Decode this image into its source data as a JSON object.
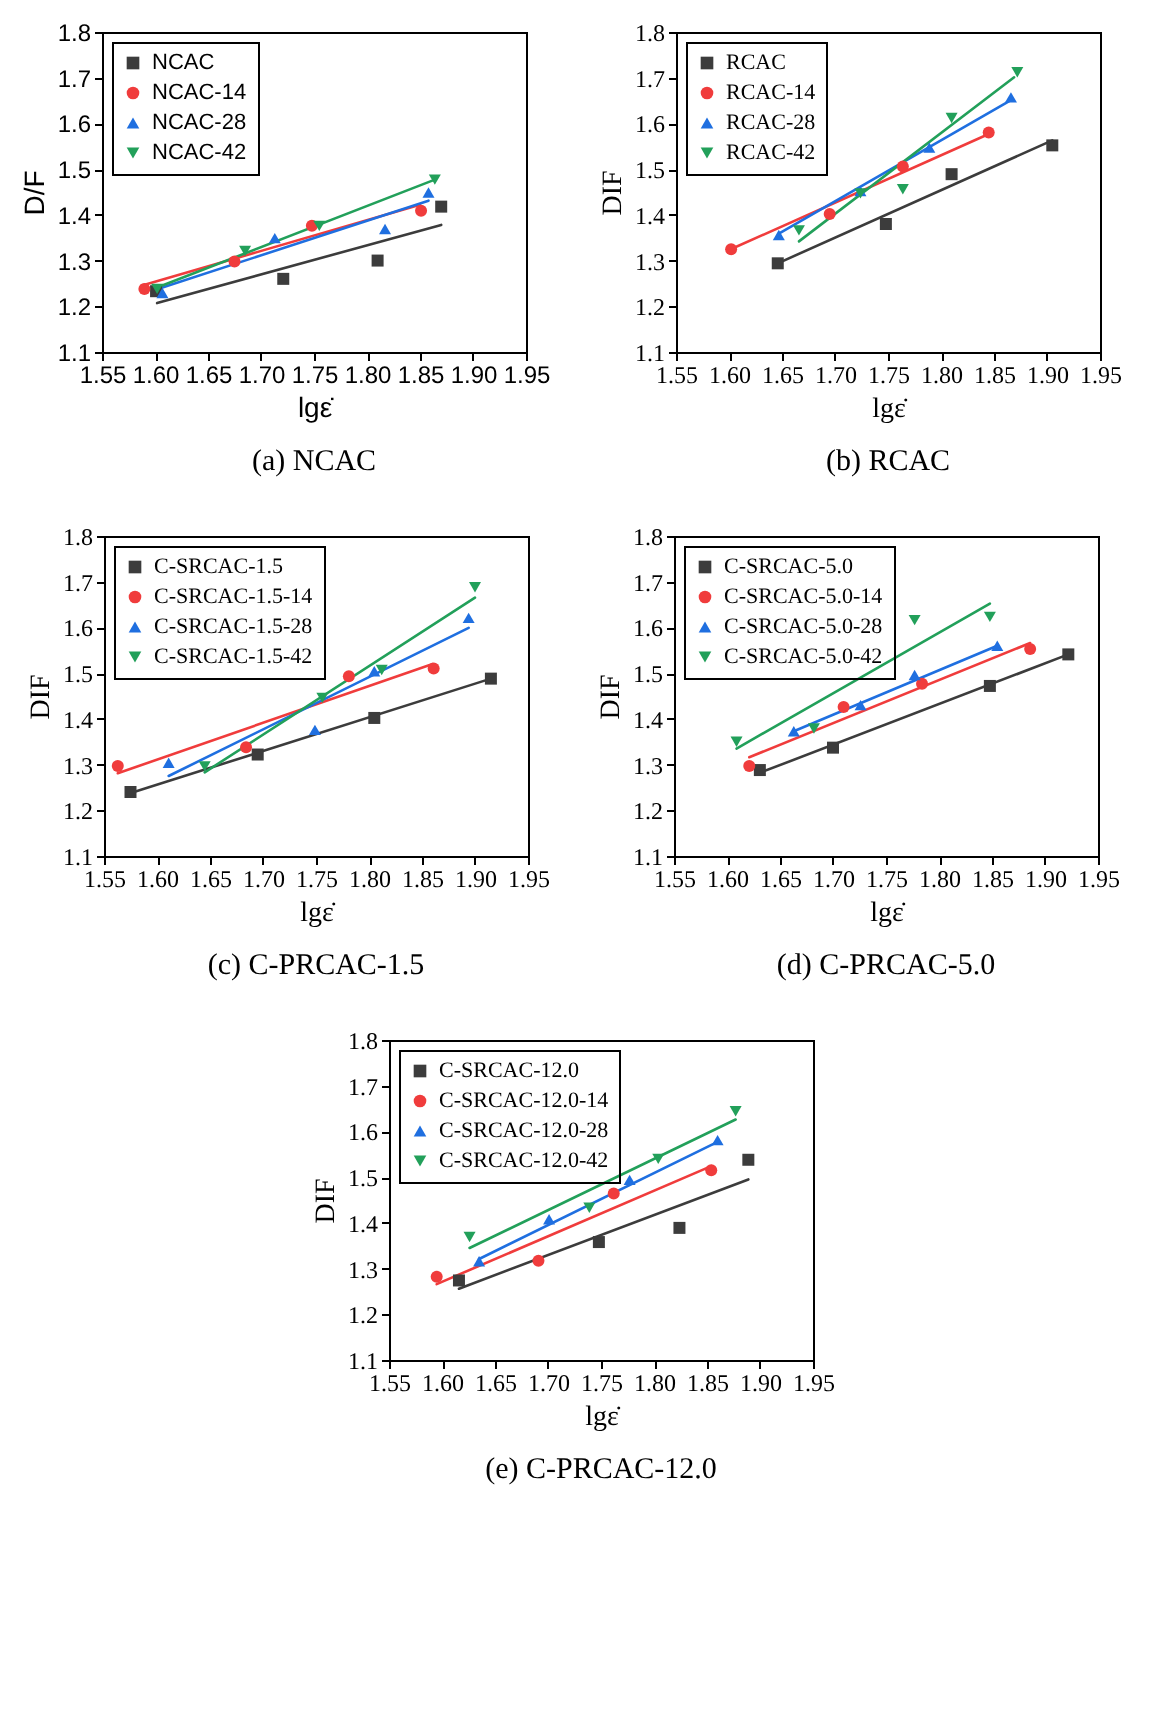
{
  "chart_data": [
    {
      "type": "scatter",
      "title": "(a) NCAC",
      "xlabel": "lgε̇",
      "ylabel": "D/F",
      "xlim": [
        1.55,
        1.95
      ],
      "ylim": [
        1.1,
        1.8
      ],
      "xticks": [
        {
          "value": 1.55,
          "label": "1.55"
        },
        {
          "value": 1.6,
          "label": "1.60"
        },
        {
          "value": 1.65,
          "label": "1.65"
        },
        {
          "value": 1.7,
          "label": "1.70"
        },
        {
          "value": 1.75,
          "label": "1.75"
        },
        {
          "value": 1.8,
          "label": "1.80"
        },
        {
          "value": 1.85,
          "label": "1.85"
        },
        {
          "value": 1.9,
          "label": "1.90"
        },
        {
          "value": 1.95,
          "label": "1.95"
        }
      ],
      "yticks": [
        1.1,
        1.2,
        1.3,
        1.4,
        1.5,
        1.6,
        1.7,
        1.8
      ],
      "legend": "top left",
      "grid": false,
      "series": [
        {
          "name": "NCAC",
          "color": "#3c3c3c",
          "marker": "square",
          "x": [
            1.601,
            1.721,
            1.81,
            1.87
          ],
          "values": [
            1.233,
            1.26,
            1.3,
            1.418
          ]
        },
        {
          "name": "NCAC-14",
          "color": "#f03c3c",
          "marker": "circle",
          "x": [
            1.59,
            1.675,
            1.748,
            1.851
          ],
          "values": [
            1.238,
            1.298,
            1.376,
            1.409
          ]
        },
        {
          "name": "NCAC-28",
          "color": "#1f6fe0",
          "marker": "triangle",
          "x": [
            1.607,
            1.713,
            1.817,
            1.858
          ],
          "values": [
            1.229,
            1.349,
            1.369,
            1.449
          ]
        },
        {
          "name": "NCAC-42",
          "color": "#22a05a",
          "marker": "triangle-down",
          "x": [
            1.602,
            1.685,
            1.755,
            1.864
          ],
          "values": [
            1.238,
            1.321,
            1.376,
            1.477
          ]
        },
        {
          "type": "line",
          "color": "#3c3c3c",
          "marker": "none",
          "x": [
            1.602,
            1.87
          ],
          "values": [
            1.207,
            1.378
          ]
        },
        {
          "type": "line",
          "color": "#f03c3c",
          "marker": "none",
          "x": [
            1.587,
            1.85
          ],
          "values": [
            1.245,
            1.422
          ]
        },
        {
          "type": "line",
          "color": "#1f6fe0",
          "marker": "none",
          "x": [
            1.607,
            1.858
          ],
          "values": [
            1.241,
            1.431
          ]
        },
        {
          "type": "line",
          "color": "#22a05a",
          "marker": "none",
          "x": [
            1.602,
            1.864
          ],
          "values": [
            1.241,
            1.477
          ]
        }
      ]
    },
    {
      "type": "scatter",
      "title": "(b) RCAC",
      "xlabel": "lgε̇",
      "ylabel": "DIF",
      "xlim": [
        1.55,
        1.95
      ],
      "ylim": [
        1.1,
        1.8
      ],
      "xticks": [
        {
          "value": 1.55,
          "label": "1.55"
        },
        {
          "value": 1.6,
          "label": "1.60"
        },
        {
          "value": 1.65,
          "label": "1.65"
        },
        {
          "value": 1.7,
          "label": "1.70"
        },
        {
          "value": 1.75,
          "label": "1.75"
        },
        {
          "value": 1.8,
          "label": "1.80"
        },
        {
          "value": 1.85,
          "label": "1.85"
        },
        {
          "value": 1.9,
          "label": "1.90"
        },
        {
          "value": 1.95,
          "label": "1.95"
        }
      ],
      "yticks": [
        1.1,
        1.2,
        1.3,
        1.4,
        1.5,
        1.6,
        1.7,
        1.8
      ],
      "legend": "top left",
      "grid": false,
      "series": [
        {
          "name": "RCAC",
          "color": "#3c3c3c",
          "marker": "square",
          "x": [
            1.646,
            1.748,
            1.81,
            1.905
          ],
          "values": [
            1.294,
            1.38,
            1.489,
            1.552
          ]
        },
        {
          "name": "RCAC-14",
          "color": "#f03c3c",
          "marker": "circle",
          "x": [
            1.602,
            1.695,
            1.764,
            1.845
          ],
          "values": [
            1.325,
            1.402,
            1.506,
            1.58
          ]
        },
        {
          "name": "RCAC-28",
          "color": "#1f6fe0",
          "marker": "triangle",
          "x": [
            1.647,
            1.724,
            1.789,
            1.866
          ],
          "values": [
            1.356,
            1.452,
            1.547,
            1.657
          ]
        },
        {
          "name": "RCAC-42",
          "color": "#22a05a",
          "marker": "triangle-down",
          "x": [
            1.666,
            1.724,
            1.764,
            1.81,
            1.872
          ],
          "values": [
            1.366,
            1.447,
            1.456,
            1.612,
            1.712
          ]
        },
        {
          "type": "line",
          "color": "#3c3c3c",
          "marker": "none",
          "x": [
            1.646,
            1.905
          ],
          "values": [
            1.294,
            1.563
          ]
        },
        {
          "type": "line",
          "color": "#f03c3c",
          "marker": "none",
          "x": [
            1.6,
            1.845
          ],
          "values": [
            1.323,
            1.577
          ]
        },
        {
          "type": "line",
          "color": "#1f6fe0",
          "marker": "none",
          "x": [
            1.647,
            1.866
          ],
          "values": [
            1.359,
            1.651
          ]
        },
        {
          "type": "line",
          "color": "#22a05a",
          "marker": "none",
          "x": [
            1.666,
            1.869
          ],
          "values": [
            1.342,
            1.701
          ]
        }
      ]
    },
    {
      "type": "scatter",
      "title": "(c) C-PRCAC-1.5",
      "xlabel": "lgε̇",
      "ylabel": "DIF",
      "xlim": [
        1.55,
        1.95
      ],
      "ylim": [
        1.1,
        1.8
      ],
      "xticks": [
        {
          "value": 1.55,
          "label": "1.55"
        },
        {
          "value": 1.6,
          "label": "1.60"
        },
        {
          "value": 1.65,
          "label": "1.65"
        },
        {
          "value": 1.7,
          "label": "1.70"
        },
        {
          "value": 1.75,
          "label": "1.75"
        },
        {
          "value": 1.8,
          "label": "1.80"
        },
        {
          "value": 1.85,
          "label": "1.85"
        },
        {
          "value": 1.9,
          "label": "1.90"
        },
        {
          "value": 1.95,
          "label": "1.95"
        }
      ],
      "yticks": [
        1.1,
        1.2,
        1.3,
        1.4,
        1.5,
        1.6,
        1.7,
        1.8
      ],
      "legend": "top left",
      "grid": false,
      "series": [
        {
          "name": "C-SRCAC-1.5",
          "color": "#3c3c3c",
          "marker": "square",
          "x": [
            1.575,
            1.695,
            1.805,
            1.915
          ],
          "values": [
            1.24,
            1.322,
            1.402,
            1.488
          ]
        },
        {
          "name": "C-SRCAC-1.5-14",
          "color": "#f03c3c",
          "marker": "circle",
          "x": [
            1.563,
            1.684,
            1.781,
            1.861
          ],
          "values": [
            1.297,
            1.338,
            1.493,
            1.51
          ]
        },
        {
          "name": "C-SRCAC-1.5-28",
          "color": "#1f6fe0",
          "marker": "triangle",
          "x": [
            1.611,
            1.749,
            1.805,
            1.894
          ],
          "values": [
            1.304,
            1.376,
            1.504,
            1.621
          ]
        },
        {
          "name": "C-SRCAC-1.5-42",
          "color": "#22a05a",
          "marker": "triangle-down",
          "x": [
            1.645,
            1.756,
            1.812,
            1.9
          ],
          "values": [
            1.296,
            1.446,
            1.507,
            1.688
          ]
        },
        {
          "type": "line",
          "color": "#3c3c3c",
          "marker": "none",
          "x": [
            1.573,
            1.915
          ],
          "values": [
            1.236,
            1.488
          ]
        },
        {
          "type": "line",
          "color": "#f03c3c",
          "marker": "none",
          "x": [
            1.563,
            1.86
          ],
          "values": [
            1.281,
            1.52
          ]
        },
        {
          "type": "line",
          "color": "#1f6fe0",
          "marker": "none",
          "x": [
            1.611,
            1.894
          ],
          "values": [
            1.275,
            1.599
          ]
        },
        {
          "type": "line",
          "color": "#22a05a",
          "marker": "none",
          "x": [
            1.645,
            1.9
          ],
          "values": [
            1.283,
            1.665
          ]
        }
      ]
    },
    {
      "type": "scatter",
      "title": "(d) C-PRCAC-5.0",
      "xlabel": "lgε̇",
      "ylabel": "DIF",
      "xlim": [
        1.55,
        1.95
      ],
      "ylim": [
        1.1,
        1.8
      ],
      "xticks": [
        {
          "value": 1.55,
          "label": "1.55"
        },
        {
          "value": 1.6,
          "label": "1.60"
        },
        {
          "value": 1.65,
          "label": "1.65"
        },
        {
          "value": 1.7,
          "label": "1.70"
        },
        {
          "value": 1.75,
          "label": "1.75"
        },
        {
          "value": 1.8,
          "label": "1.80"
        },
        {
          "value": 1.85,
          "label": "1.85"
        },
        {
          "value": 1.9,
          "label": "1.90"
        },
        {
          "value": 1.95,
          "label": "1.95"
        }
      ],
      "yticks": [
        1.1,
        1.2,
        1.3,
        1.4,
        1.5,
        1.6,
        1.7,
        1.8
      ],
      "legend": "top left",
      "grid": false,
      "series": [
        {
          "name": "C-SRCAC-5.0",
          "color": "#3c3c3c",
          "marker": "square",
          "x": [
            1.631,
            1.7,
            1.848,
            1.922
          ],
          "values": [
            1.288,
            1.337,
            1.472,
            1.541
          ]
        },
        {
          "name": "C-SRCAC-5.0-14",
          "color": "#f03c3c",
          "marker": "circle",
          "x": [
            1.621,
            1.71,
            1.784,
            1.886
          ],
          "values": [
            1.297,
            1.426,
            1.477,
            1.553
          ]
        },
        {
          "name": "C-SRCAC-5.0-28",
          "color": "#1f6fe0",
          "marker": "triangle",
          "x": [
            1.663,
            1.726,
            1.777,
            1.855
          ],
          "values": [
            1.373,
            1.43,
            1.496,
            1.56
          ]
        },
        {
          "name": "C-SRCAC-5.0-42",
          "color": "#22a05a",
          "marker": "triangle-down",
          "x": [
            1.609,
            1.682,
            1.777,
            1.848
          ],
          "values": [
            1.35,
            1.379,
            1.616,
            1.623
          ]
        },
        {
          "type": "line",
          "color": "#3c3c3c",
          "marker": "none",
          "x": [
            1.631,
            1.922
          ],
          "values": [
            1.282,
            1.541
          ]
        },
        {
          "type": "line",
          "color": "#f03c3c",
          "marker": "none",
          "x": [
            1.621,
            1.886
          ],
          "values": [
            1.316,
            1.566
          ]
        },
        {
          "type": "line",
          "color": "#1f6fe0",
          "marker": "none",
          "x": [
            1.663,
            1.855
          ],
          "values": [
            1.373,
            1.56
          ]
        },
        {
          "type": "line",
          "color": "#22a05a",
          "marker": "none",
          "x": [
            1.609,
            1.848
          ],
          "values": [
            1.335,
            1.652
          ]
        }
      ]
    },
    {
      "type": "scatter",
      "title": "(e) C-PRCAC-12.0",
      "xlabel": "lgε̇",
      "ylabel": "DIF",
      "xlim": [
        1.55,
        1.95
      ],
      "ylim": [
        1.1,
        1.8
      ],
      "xticks": [
        {
          "value": 1.55,
          "label": "1.55"
        },
        {
          "value": 1.6,
          "label": "1.60"
        },
        {
          "value": 1.65,
          "label": "1.65"
        },
        {
          "value": 1.7,
          "label": "1.70"
        },
        {
          "value": 1.75,
          "label": "1.75"
        },
        {
          "value": 1.8,
          "label": "1.80"
        },
        {
          "value": 1.85,
          "label": "1.85"
        },
        {
          "value": 1.9,
          "label": "1.90"
        },
        {
          "value": 1.95,
          "label": "1.95"
        }
      ],
      "yticks": [
        1.1,
        1.2,
        1.3,
        1.4,
        1.5,
        1.6,
        1.7,
        1.8
      ],
      "legend": "top left",
      "grid": false,
      "series": [
        {
          "name": "C-SRCAC-12.0",
          "color": "#3c3c3c",
          "marker": "square",
          "x": [
            1.616,
            1.748,
            1.824,
            1.889
          ],
          "values": [
            1.274,
            1.358,
            1.389,
            1.538
          ]
        },
        {
          "name": "C-SRCAC-12.0-14",
          "color": "#f03c3c",
          "marker": "circle",
          "x": [
            1.595,
            1.691,
            1.762,
            1.854
          ],
          "values": [
            1.282,
            1.317,
            1.464,
            1.515
          ]
        },
        {
          "name": "C-SRCAC-12.0-28",
          "color": "#1f6fe0",
          "marker": "triangle",
          "x": [
            1.635,
            1.701,
            1.777,
            1.86
          ],
          "values": [
            1.316,
            1.408,
            1.494,
            1.581
          ]
        },
        {
          "name": "C-SRCAC-12.0-42",
          "color": "#22a05a",
          "marker": "triangle-down",
          "x": [
            1.626,
            1.739,
            1.804,
            1.877
          ],
          "values": [
            1.369,
            1.433,
            1.54,
            1.644
          ]
        },
        {
          "type": "line",
          "color": "#3c3c3c",
          "marker": "none",
          "x": [
            1.616,
            1.889
          ],
          "values": [
            1.256,
            1.495
          ]
        },
        {
          "type": "line",
          "color": "#f03c3c",
          "marker": "none",
          "x": [
            1.595,
            1.854
          ],
          "values": [
            1.266,
            1.524
          ]
        },
        {
          "type": "line",
          "color": "#1f6fe0",
          "marker": "none",
          "x": [
            1.635,
            1.86
          ],
          "values": [
            1.321,
            1.577
          ]
        },
        {
          "type": "line",
          "color": "#22a05a",
          "marker": "none",
          "x": [
            1.626,
            1.877
          ],
          "values": [
            1.345,
            1.626
          ]
        }
      ]
    }
  ]
}
